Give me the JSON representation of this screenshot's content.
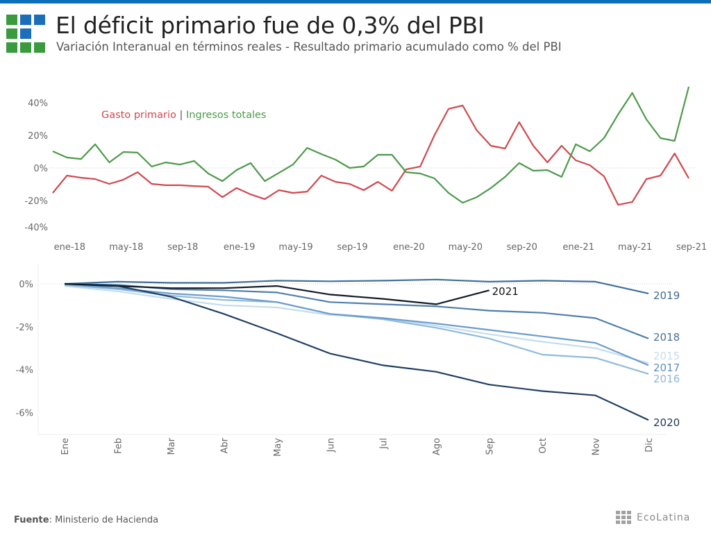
{
  "header": {
    "title": "El déficit primario fue de 0,3% del PBI",
    "subtitle": "Variación Interanual en términos reales - Resultado primario acumulado como % del PBI",
    "logo_colors": [
      "#3a9a3e",
      "#1d6eb8",
      "#1d6eb8",
      "#3a9a3e",
      "#1d6eb8",
      null,
      "#3a9a3e",
      "#3a9a3e",
      "#3a9a3e"
    ]
  },
  "footer": {
    "source_label": "Fuente",
    "source_text": ": Ministerio de Hacienda",
    "brand": "EcoLatina"
  },
  "chart_data": [
    {
      "type": "line",
      "title": "Variación interanual en términos reales",
      "xlabel": "",
      "ylabel": "",
      "ylim": [
        -45,
        50
      ],
      "yticks": [
        40,
        20,
        0,
        -20,
        -40
      ],
      "ytick_labels": [
        "40%",
        "20%",
        "0%",
        "-20%",
        "-40%"
      ],
      "grid": "zero-line only",
      "legend": "top-left",
      "legend_separator": "|",
      "x": [
        "dic-17",
        "ene-18",
        "feb-18",
        "mar-18",
        "abr-18",
        "may-18",
        "jun-18",
        "jul-18",
        "ago-18",
        "sep-18",
        "oct-18",
        "nov-18",
        "dic-18",
        "ene-19",
        "feb-19",
        "mar-19",
        "abr-19",
        "may-19",
        "jun-19",
        "jul-19",
        "ago-19",
        "sep-19",
        "oct-19",
        "nov-19",
        "dic-19",
        "ene-20",
        "feb-20",
        "mar-20",
        "abr-20",
        "may-20",
        "jun-20",
        "jul-20",
        "ago-20",
        "sep-20",
        "oct-20",
        "nov-20",
        "dic-20",
        "ene-21",
        "feb-21",
        "mar-21",
        "abr-21",
        "may-21",
        "jun-21",
        "jul-21",
        "ago-21",
        "sep-21"
      ],
      "xtick_labels": [
        "ene-18",
        "may-18",
        "sep-18",
        "ene-19",
        "may-19",
        "sep-19",
        "ene-20",
        "may-20",
        "sep-20",
        "ene-21",
        "may-21",
        "sep-21"
      ],
      "series": [
        {
          "name": "Gasto primario",
          "color": "#d0484e",
          "values": [
            -15.3,
            -4.7,
            -6.0,
            -6.8,
            -9.8,
            -7.2,
            -2.6,
            -9.8,
            -10.6,
            -10.6,
            -11.1,
            -11.5,
            -17.9,
            -12.3,
            -16.2,
            -19.1,
            -13.6,
            -15.3,
            -14.5,
            -4.7,
            -8.5,
            -9.8,
            -13.6,
            -8.5,
            -14.0,
            -0.9,
            0.9,
            20.0,
            36.2,
            38.3,
            23.0,
            13.6,
            11.9,
            28.1,
            13.6,
            3.4,
            13.6,
            4.7,
            1.7,
            -5.1,
            -22.6,
            -20.9,
            -6.8,
            -4.7,
            8.9,
            -6.4
          ]
        },
        {
          "name": "Ingresos totales",
          "color": "#4b9a48",
          "values": [
            10.2,
            6.4,
            5.5,
            14.5,
            3.4,
            9.8,
            9.4,
            0.9,
            3.4,
            2.1,
            4.3,
            -3.4,
            -8.1,
            -1.3,
            3.0,
            -8.1,
            -3.0,
            2.1,
            12.3,
            8.5,
            5.1,
            0.0,
            0.9,
            8.1,
            8.1,
            -2.6,
            -3.4,
            -6.4,
            -15.3,
            -21.3,
            -17.9,
            -12.3,
            -5.5,
            3.0,
            -1.7,
            -1.3,
            -5.5,
            14.5,
            10.2,
            18.3,
            32.8,
            46.0,
            29.8,
            18.3,
            16.6,
            49.8
          ]
        }
      ]
    },
    {
      "type": "line",
      "title": "Resultado primario acumulado como % del PBI",
      "xlabel": "",
      "ylabel": "",
      "ylim": [
        -7,
        0.5
      ],
      "yticks": [
        0,
        -2,
        -4,
        -6
      ],
      "ytick_labels": [
        "0%",
        "-2%",
        "-4%",
        "-6%"
      ],
      "grid": "zero-line only",
      "legend": "labels at line ends (right)",
      "x": [
        "Ene",
        "Feb",
        "Mar",
        "Abr",
        "May",
        "Jun",
        "Jul",
        "Ago",
        "Sep",
        "Oct",
        "Nov",
        "Dic"
      ],
      "series": [
        {
          "name": "2015",
          "color": "#c4dcee",
          "label_color": "#c9dcea",
          "values": [
            -0.1,
            -0.35,
            -0.7,
            -1.0,
            -1.1,
            -1.45,
            -1.6,
            -1.95,
            -2.35,
            -2.7,
            -3.0,
            -3.7
          ]
        },
        {
          "name": "2016",
          "color": "#8fbadb",
          "label_color": "#8fb8d6",
          "values": [
            -0.05,
            -0.25,
            -0.55,
            -0.75,
            -0.85,
            -1.4,
            -1.65,
            -2.05,
            -2.55,
            -3.3,
            -3.45,
            -4.2
          ]
        },
        {
          "name": "2017",
          "color": "#6a9ccb",
          "label_color": "#5f8fbb",
          "values": [
            0.0,
            -0.2,
            -0.45,
            -0.6,
            -0.85,
            -1.4,
            -1.6,
            -1.85,
            -2.15,
            -2.45,
            -2.75,
            -3.8
          ]
        },
        {
          "name": "2018",
          "color": "#4f7fab",
          "label_color": "#4a7197",
          "values": [
            0.0,
            -0.05,
            -0.25,
            -0.3,
            -0.4,
            -0.85,
            -0.95,
            -1.05,
            -1.25,
            -1.35,
            -1.6,
            -2.55
          ]
        },
        {
          "name": "2019",
          "color": "#3f6f9a",
          "label_color": "#3f6a91",
          "values": [
            0.0,
            0.1,
            0.05,
            0.05,
            0.15,
            0.12,
            0.15,
            0.2,
            0.1,
            0.15,
            0.1,
            -0.45
          ]
        },
        {
          "name": "2020",
          "color": "#1f3f63",
          "label_color": "#1f3854",
          "values": [
            0.0,
            -0.1,
            -0.6,
            -1.4,
            -2.3,
            -3.25,
            -3.8,
            -4.1,
            -4.7,
            -5.0,
            -5.2,
            -6.35
          ]
        },
        {
          "name": "2021",
          "color": "#101a28",
          "label_color": "#111111",
          "values": [
            0.0,
            -0.1,
            -0.2,
            -0.2,
            -0.1,
            -0.5,
            -0.7,
            -0.95,
            -0.3
          ]
        }
      ]
    }
  ]
}
